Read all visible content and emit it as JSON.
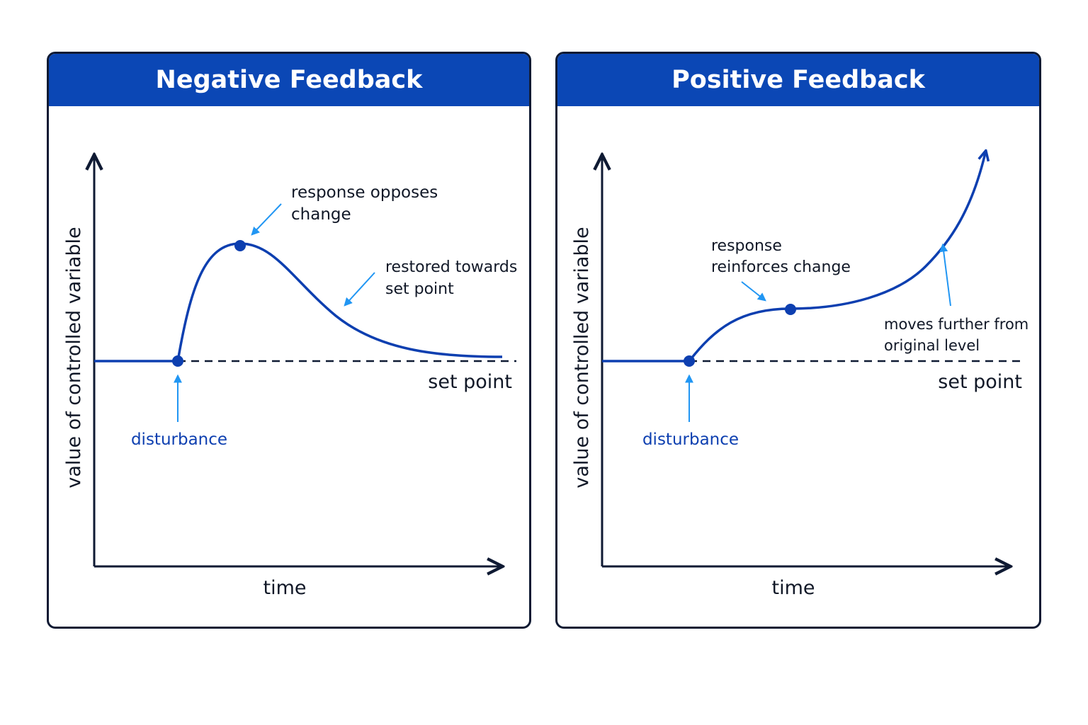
{
  "colors": {
    "header": "#0b47b5",
    "curve": "#0d3fb0",
    "arrow": "#2196f3",
    "axis": "#0f1a33",
    "disturbance_text": "#0d3fb0"
  },
  "panels": {
    "negative": {
      "title": "Negative Feedback",
      "y_axis_label": "value of controlled variable",
      "x_axis_label": "time",
      "set_point_label": "set point",
      "disturbance_label": "disturbance",
      "annotation_peak_line1": "response opposes",
      "annotation_peak_line2": "change",
      "annotation_restore_line1": "restored towards",
      "annotation_restore_line2": "set point"
    },
    "positive": {
      "title": "Positive Feedback",
      "y_axis_label": "value of controlled variable",
      "x_axis_label": "time",
      "set_point_label": "set point",
      "disturbance_label": "disturbance",
      "annotation_reinforce_line1": "response",
      "annotation_reinforce_line2": "reinforces change",
      "annotation_further_line1": "moves further from",
      "annotation_further_line2": "original level"
    }
  }
}
